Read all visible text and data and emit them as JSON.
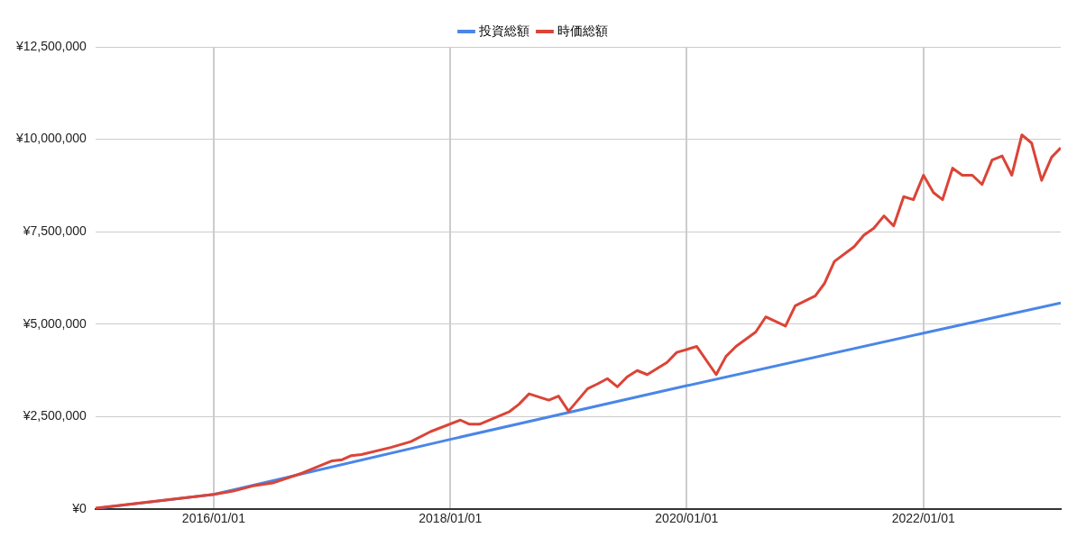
{
  "chart_data": {
    "type": "line",
    "legend": "top",
    "grid": true,
    "marker": "none",
    "line_style": "solid",
    "xlim": [
      "2015-01-01",
      "2023-03-01"
    ],
    "xticks": [
      {
        "value": "2016-01-01",
        "label": "2016/01/01"
      },
      {
        "value": "2018-01-01",
        "label": "2018/01/01"
      },
      {
        "value": "2020-01-01",
        "label": "2020/01/01"
      },
      {
        "value": "2022-01-01",
        "label": "2022/01/01"
      }
    ],
    "ylim": [
      0,
      12500000
    ],
    "yticks": [
      {
        "value": 0,
        "label": "¥0"
      },
      {
        "value": 2500000,
        "label": "¥2,500,000"
      },
      {
        "value": 5000000,
        "label": "¥5,000,000"
      },
      {
        "value": 7500000,
        "label": "¥7,500,000"
      },
      {
        "value": 10000000,
        "label": "¥10,000,000"
      },
      {
        "value": 12500000,
        "label": "¥12,500,000"
      }
    ],
    "series": [
      {
        "name": "投資総額",
        "color": "#4a86e8",
        "x": [
          "2015-01",
          "2016-01",
          "2018-01",
          "2020-01",
          "2022-01",
          "2023-03"
        ],
        "values": [
          20000,
          400000,
          1890000,
          3340000,
          4760000,
          5580000
        ]
      },
      {
        "name": "時価総額",
        "color": "#db4437",
        "x": [
          "2015-01",
          "2016-01",
          "2016-03",
          "2016-05",
          "2016-07",
          "2016-10",
          "2017-01",
          "2017-02",
          "2017-03",
          "2017-04",
          "2017-07",
          "2017-09",
          "2017-11",
          "2018-02",
          "2018-03",
          "2018-04",
          "2018-07",
          "2018-08",
          "2018-09",
          "2018-11",
          "2018-12",
          "2019-01",
          "2019-03",
          "2019-04",
          "2019-05",
          "2019-06",
          "2019-07",
          "2019-08",
          "2019-09",
          "2019-11",
          "2019-12",
          "2020-02",
          "2020-04",
          "2020-05",
          "2020-06",
          "2020-08",
          "2020-09",
          "2020-11",
          "2020-12",
          "2021-02",
          "2021-03",
          "2021-04",
          "2021-06",
          "2021-07",
          "2021-08",
          "2021-09",
          "2021-10",
          "2021-11",
          "2021-12",
          "2022-01",
          "2022-02",
          "2022-03",
          "2022-04",
          "2022-05",
          "2022-06",
          "2022-07",
          "2022-08",
          "2022-09",
          "2022-10",
          "2022-11",
          "2022-12",
          "2023-01",
          "2023-02",
          "2023-03"
        ],
        "values": [
          30000,
          400000,
          490000,
          630000,
          710000,
          980000,
          1310000,
          1340000,
          1450000,
          1480000,
          1670000,
          1830000,
          2100000,
          2410000,
          2300000,
          2300000,
          2630000,
          2840000,
          3120000,
          2950000,
          3060000,
          2650000,
          3260000,
          3390000,
          3530000,
          3310000,
          3580000,
          3750000,
          3640000,
          3970000,
          4240000,
          4400000,
          3640000,
          4130000,
          4400000,
          4790000,
          5200000,
          4950000,
          5500000,
          5770000,
          6100000,
          6700000,
          7100000,
          7410000,
          7600000,
          7930000,
          7660000,
          8450000,
          8370000,
          9030000,
          8560000,
          8370000,
          9220000,
          9030000,
          9030000,
          8780000,
          9440000,
          9550000,
          9030000,
          10120000,
          9900000,
          8890000,
          9520000,
          9770000
        ]
      }
    ]
  }
}
